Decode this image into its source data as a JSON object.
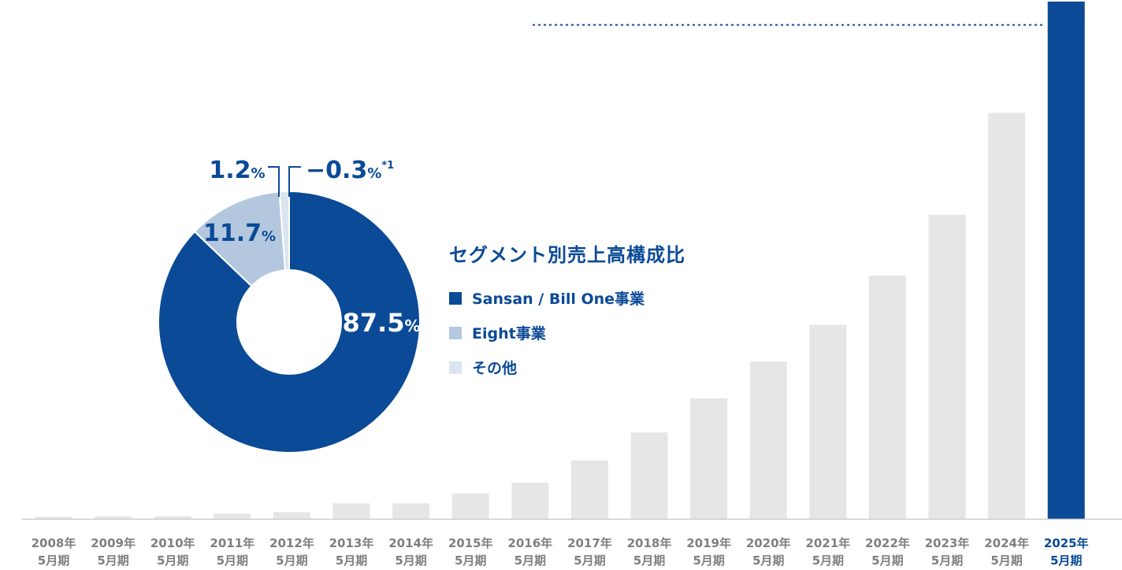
{
  "colors": {
    "bar": "#e6e6e6",
    "bar_highlight": "#0b4a96",
    "sansan": "#0b4a96",
    "eight": "#b3c7df",
    "other": "#dbe5f0",
    "text_blue": "#0b4a96",
    "axis_text": "#7f7f7f",
    "axis_line": "#cccccc"
  },
  "chart_data": [
    {
      "type": "bar",
      "categories": [
        [
          "2008年",
          "5月期"
        ],
        [
          "2009年",
          "5月期"
        ],
        [
          "2010年",
          "5月期"
        ],
        [
          "2011年",
          "5月期"
        ],
        [
          "2012年",
          "5月期"
        ],
        [
          "2013年",
          "5月期"
        ],
        [
          "2014年",
          "5月期"
        ],
        [
          "2015年",
          "5月期"
        ],
        [
          "2016年",
          "5月期"
        ],
        [
          "2017年",
          "5月期"
        ],
        [
          "2018年",
          "5月期"
        ],
        [
          "2019年",
          "5月期"
        ],
        [
          "2020年",
          "5月期"
        ],
        [
          "2021年",
          "5月期"
        ],
        [
          "2022年",
          "5月期"
        ],
        [
          "2023年",
          "5月期"
        ],
        [
          "2024年",
          "5月期"
        ],
        [
          "2025年",
          "5月期"
        ]
      ],
      "values": [
        0.4,
        0.5,
        0.5,
        1.0,
        1.3,
        3.0,
        3.0,
        4.9,
        7.0,
        11.3,
        16.7,
        23.3,
        30.4,
        37.5,
        47.0,
        58.8,
        78.5,
        100
      ],
      "highlight_index": 17,
      "ylim": [
        0,
        100
      ],
      "grid": false,
      "reference_line": {
        "style": "dotted",
        "at_value": 95.5
      }
    },
    {
      "type": "pie",
      "title": "セグメント別売上高構成比",
      "donut": true,
      "slices": [
        {
          "name": "Sansan / Bill One事業",
          "value": 87.5,
          "num": "87.5",
          "unit": "%",
          "color_key": "sansan"
        },
        {
          "name": "Eight事業",
          "value": 11.7,
          "num": "11.7",
          "unit": "%",
          "color_key": "eight"
        },
        {
          "name": "その他",
          "value": 1.2,
          "num": "1.2",
          "unit": "%",
          "color_key": "other"
        }
      ],
      "adjustment": {
        "num": "−0.3",
        "unit": "%",
        "note": "*1"
      },
      "legend_placement": "right"
    }
  ]
}
